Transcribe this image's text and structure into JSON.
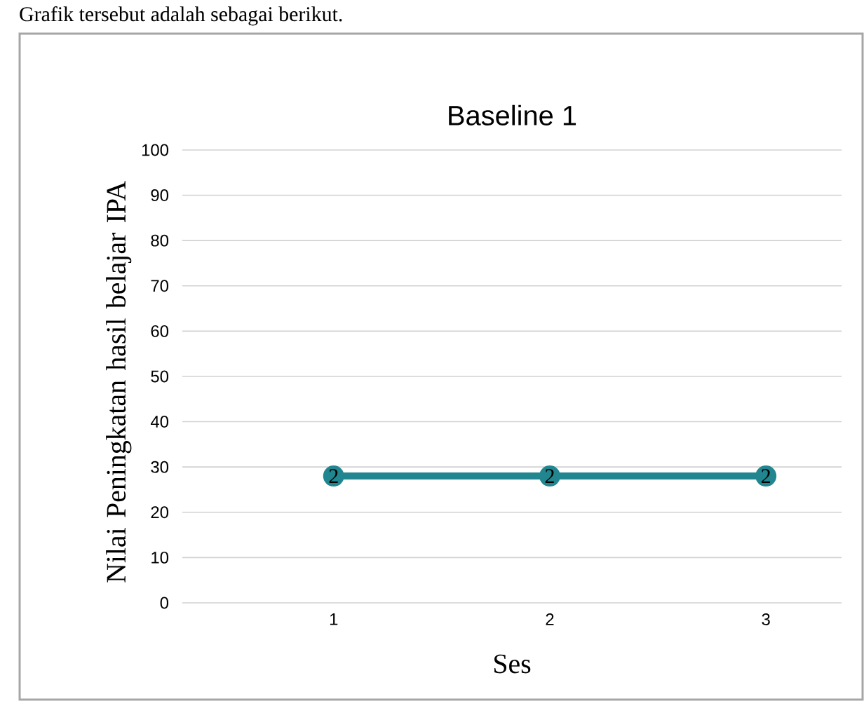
{
  "chart_data": {
    "type": "line",
    "title": "Baseline 1",
    "xlabel": "Ses",
    "ylabel": "Nilai Peningkatan hasil belajar IPA",
    "annotations": [
      "Grafik tersebut adalah sebagai berikut.",
      {
        "text": "2",
        "x": "1",
        "y": 28
      },
      {
        "text": "2",
        "x": "2",
        "y": 28
      },
      {
        "text": "2",
        "x": "3",
        "y": 28
      }
    ],
    "categories": [
      "1",
      "2",
      "3"
    ],
    "series": [
      {
        "color": "#21868f",
        "values": [
          28,
          28,
          28
        ]
      }
    ],
    "ylim": [
      0,
      100
    ],
    "yticks": [
      0,
      10,
      20,
      30,
      40,
      50,
      60,
      70,
      80,
      90,
      100
    ],
    "grid": "y",
    "marker": "circle",
    "line_style": "solid"
  }
}
